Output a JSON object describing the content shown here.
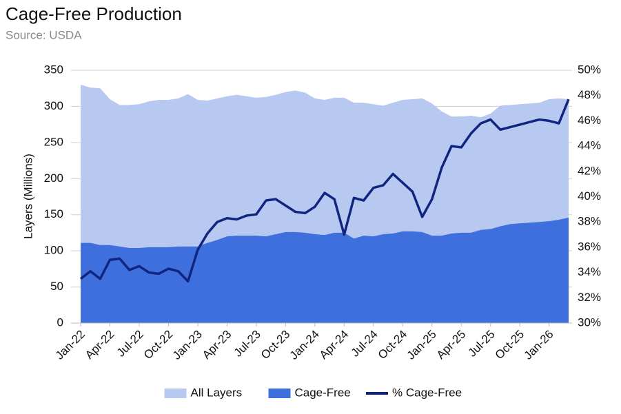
{
  "chart_data": {
    "type": "area",
    "title": "Cage-Free Production",
    "subtitle": "Source: USDA",
    "y_label": "Layers (Millions)",
    "categories": [
      "Jan-22",
      null,
      null,
      "Apr-22",
      null,
      null,
      "Jul-22",
      null,
      null,
      "Oct-22",
      null,
      null,
      "Jan-23",
      null,
      null,
      "Apr-23",
      null,
      null,
      "Jul-23",
      null,
      null,
      "Oct-23",
      null,
      null,
      "Jan-24",
      null,
      null,
      "Apr-24",
      null,
      null,
      "Jul-24",
      null,
      null,
      "Oct-24",
      null,
      null,
      "Jan-25",
      null,
      null,
      "Apr-25",
      null,
      null,
      "Jul-25",
      null,
      null,
      "Oct-25",
      null,
      null,
      "Jan-26",
      null,
      null
    ],
    "series": [
      {
        "name": "All Layers",
        "type": "area",
        "color": "#b7c8f1",
        "values": [
          330,
          326,
          325,
          310,
          302,
          302,
          303,
          307,
          309,
          309,
          311,
          317,
          309,
          308,
          311,
          314,
          316,
          314,
          312,
          313,
          316,
          320,
          322,
          319,
          311,
          309,
          312,
          312,
          305,
          305,
          303,
          301,
          305,
          309,
          310,
          311,
          304,
          293,
          286,
          286,
          287,
          285,
          290,
          301,
          302,
          303,
          304,
          305,
          310,
          311,
          310
        ]
      },
      {
        "name": "Cage-Free",
        "type": "area",
        "color": "#3f6fdc",
        "values": [
          111,
          111,
          108,
          108,
          106,
          104,
          104,
          105,
          105,
          105,
          106,
          106,
          106,
          111,
          115,
          120,
          121,
          121,
          121,
          120,
          123,
          126,
          126,
          125,
          123,
          122,
          125,
          125,
          117,
          121,
          120,
          123,
          124,
          127,
          127,
          126,
          121,
          121,
          124,
          125,
          125,
          129,
          130,
          134,
          137,
          138,
          139,
          140,
          141,
          143,
          146
        ]
      },
      {
        "name": "% Cage-Free",
        "type": "line",
        "axis": "y2",
        "color": "#0f2580",
        "values": [
          33.5,
          34.1,
          33.5,
          35.0,
          35.1,
          34.2,
          34.5,
          34.0,
          33.9,
          34.3,
          34.1,
          33.3,
          35.8,
          37.1,
          38.0,
          38.3,
          38.2,
          38.5,
          38.6,
          39.7,
          39.8,
          39.3,
          38.8,
          38.7,
          39.2,
          40.3,
          39.8,
          37.0,
          39.9,
          39.7,
          40.7,
          40.9,
          41.8,
          41.1,
          40.4,
          38.4,
          39.8,
          42.3,
          44.0,
          43.9,
          45.0,
          45.8,
          46.1,
          45.3,
          45.5,
          45.7,
          45.9,
          46.1,
          46.0,
          45.8,
          47.7
        ]
      }
    ],
    "ylim": [
      0,
      350
    ],
    "yticks": [
      0,
      50,
      100,
      150,
      200,
      250,
      300,
      350
    ],
    "y2lim": [
      30,
      50
    ],
    "y2ticks": [
      {
        "value": 30,
        "label": "30%"
      },
      {
        "value": 32,
        "label": "32%"
      },
      {
        "value": 34,
        "label": "34%"
      },
      {
        "value": 36,
        "label": "36%"
      },
      {
        "value": 38,
        "label": "38%"
      },
      {
        "value": 40,
        "label": "40%"
      },
      {
        "value": 42,
        "label": "42%"
      },
      {
        "value": 44,
        "label": "44%"
      },
      {
        "value": 46,
        "label": "46%"
      },
      {
        "value": 48,
        "label": "48%"
      },
      {
        "value": 50,
        "label": "50%"
      }
    ],
    "grid": true,
    "legend": "bottom"
  }
}
